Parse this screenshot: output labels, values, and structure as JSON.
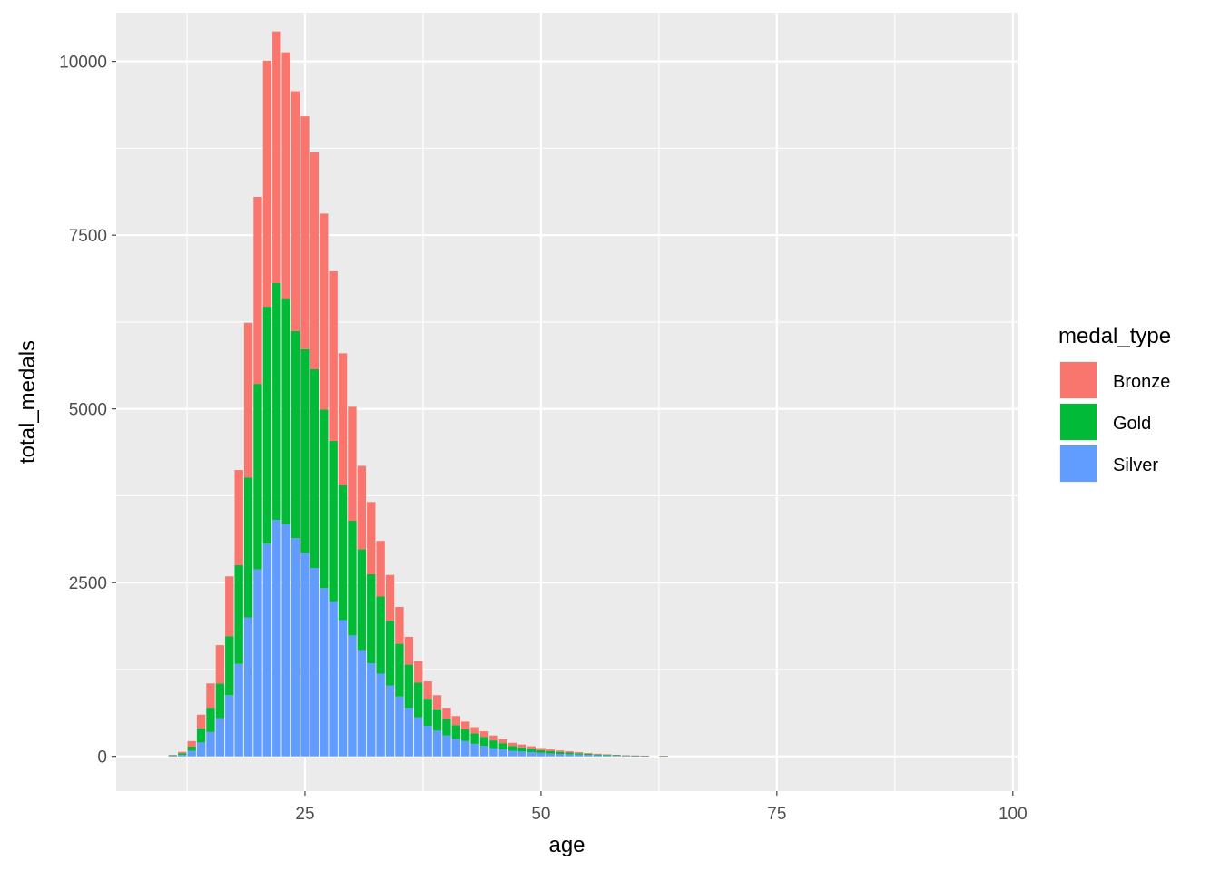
{
  "chart_data": {
    "type": "bar",
    "stacked": true,
    "title": "",
    "xlabel": "age",
    "ylabel": "total_medals",
    "xlim": [
      5,
      100.5
    ],
    "ylim": [
      -500,
      10700
    ],
    "x_ticks": [
      25,
      50,
      75,
      100
    ],
    "y_ticks": [
      0,
      2500,
      5000,
      7500,
      10000
    ],
    "grid": true,
    "background": "#ebebeb",
    "legend": {
      "title": "medal_type",
      "position": "right",
      "entries": [
        {
          "name": "Bronze",
          "color": "#f8766d"
        },
        {
          "name": "Gold",
          "color": "#00ba38"
        },
        {
          "name": "Silver",
          "color": "#619cff"
        }
      ]
    },
    "x": [
      11,
      12,
      13,
      14,
      15,
      16,
      17,
      18,
      19,
      20,
      21,
      22,
      23,
      24,
      25,
      26,
      27,
      28,
      29,
      30,
      31,
      32,
      33,
      34,
      35,
      36,
      37,
      38,
      39,
      40,
      41,
      42,
      43,
      44,
      45,
      46,
      47,
      48,
      49,
      50,
      51,
      52,
      53,
      54,
      55,
      56,
      57,
      58,
      59,
      60,
      61,
      63
    ],
    "series": [
      {
        "name": "Silver",
        "color": "#619cff",
        "values": [
          5,
          20,
          80,
          200,
          350,
          550,
          880,
          1330,
          2000,
          2690,
          3060,
          3400,
          3340,
          3140,
          2930,
          2710,
          2420,
          2230,
          1960,
          1740,
          1530,
          1340,
          1190,
          1020,
          860,
          700,
          560,
          440,
          370,
          300,
          250,
          220,
          180,
          150,
          120,
          100,
          80,
          70,
          60,
          50,
          40,
          35,
          30,
          25,
          20,
          15,
          12,
          8,
          5,
          4,
          3,
          2
        ]
      },
      {
        "name": "Gold",
        "color": "#00ba38",
        "values": [
          10,
          25,
          60,
          200,
          350,
          500,
          850,
          1420,
          2010,
          2670,
          3410,
          3410,
          3240,
          2980,
          2930,
          2860,
          2570,
          2310,
          1940,
          1650,
          1450,
          1280,
          1110,
          930,
          760,
          620,
          500,
          390,
          310,
          240,
          200,
          170,
          150,
          130,
          110,
          90,
          70,
          60,
          50,
          40,
          35,
          30,
          25,
          20,
          15,
          12,
          10,
          8,
          6,
          5,
          4,
          3
        ]
      },
      {
        "name": "Bronze",
        "color": "#f8766d",
        "values": [
          5,
          20,
          80,
          200,
          350,
          550,
          860,
          1370,
          2230,
          2690,
          3540,
          3620,
          3550,
          3450,
          3350,
          3120,
          2820,
          2440,
          1900,
          1640,
          1200,
          1040,
          800,
          660,
          530,
          400,
          310,
          250,
          200,
          160,
          130,
          110,
          90,
          80,
          70,
          55,
          45,
          40,
          35,
          30,
          25,
          20,
          18,
          15,
          12,
          10,
          8,
          6,
          5,
          4,
          3,
          2
        ]
      }
    ]
  }
}
